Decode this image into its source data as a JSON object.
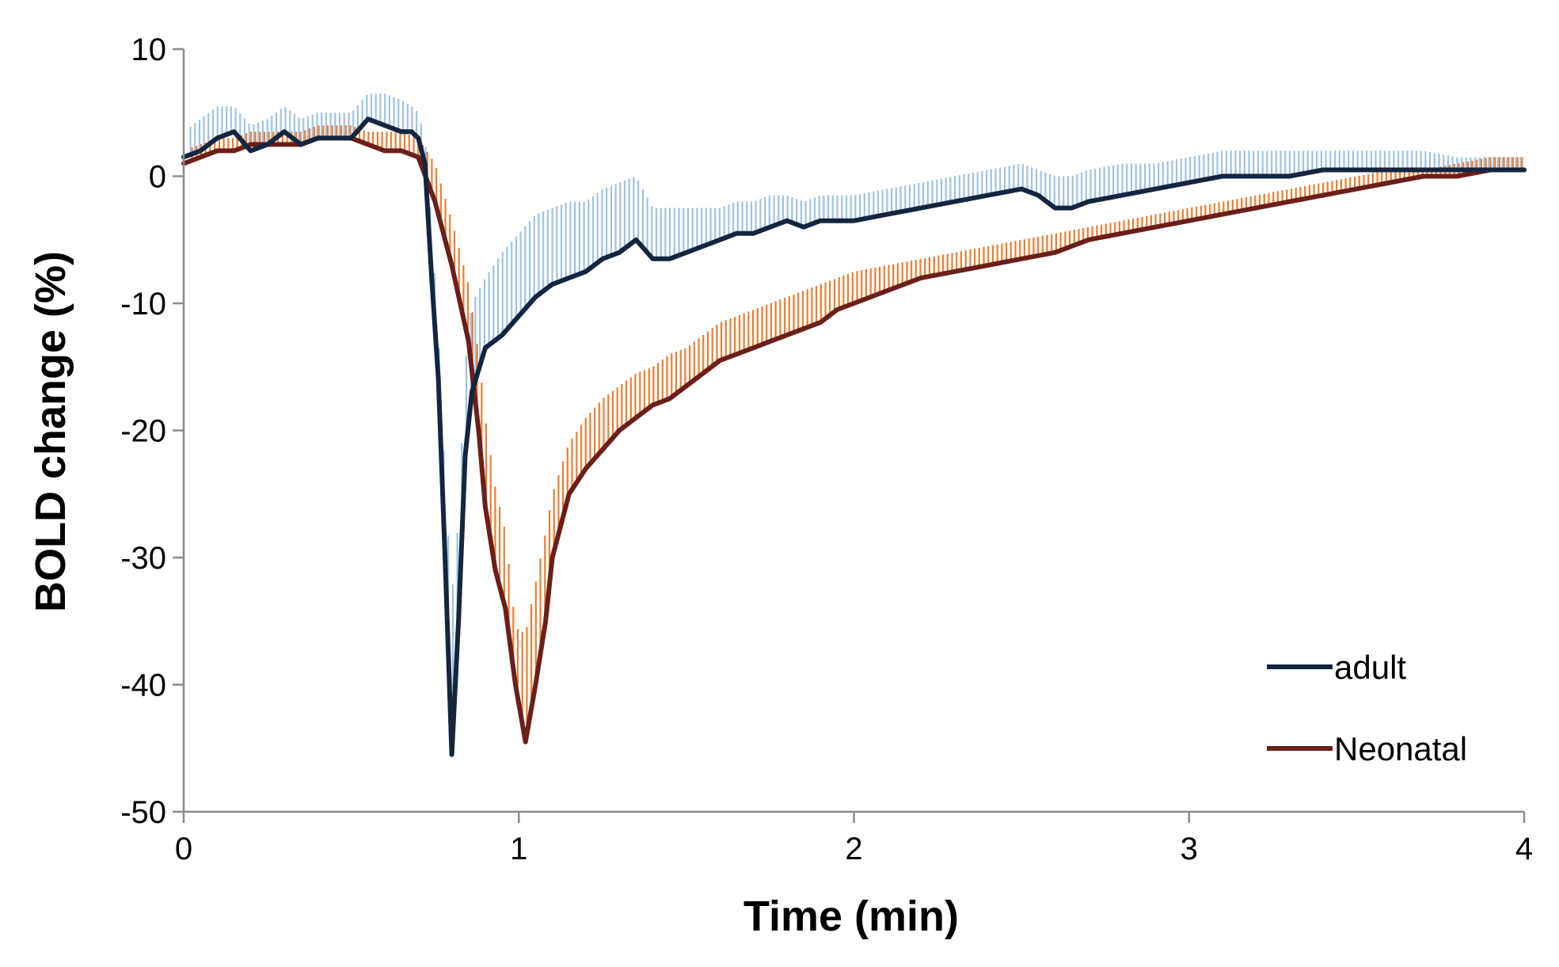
{
  "chart_data": {
    "type": "line",
    "title": "",
    "xlabel": "Time (min)",
    "ylabel": "BOLD change (%)",
    "xlim": [
      0,
      4
    ],
    "ylim": [
      -50,
      10
    ],
    "x_ticks": [
      "0",
      "1",
      "2",
      "3",
      "4"
    ],
    "y_ticks": [
      "10",
      "0",
      "-10",
      "-20",
      "-30",
      "-40",
      "-50"
    ],
    "grid": false,
    "legend_position": "bottom-right",
    "error_bars": "upper",
    "series": [
      {
        "name": "adult",
        "color": "#14253f",
        "error_color": "#9dc3e6",
        "points": [
          [
            0.0,
            1.5
          ],
          [
            0.05,
            2.0
          ],
          [
            0.1,
            3.0
          ],
          [
            0.15,
            3.5
          ],
          [
            0.2,
            2.0
          ],
          [
            0.25,
            2.5
          ],
          [
            0.3,
            3.5
          ],
          [
            0.35,
            2.5
          ],
          [
            0.4,
            3.0
          ],
          [
            0.45,
            3.0
          ],
          [
            0.5,
            3.0
          ],
          [
            0.55,
            4.5
          ],
          [
            0.6,
            4.0
          ],
          [
            0.65,
            3.5
          ],
          [
            0.68,
            3.5
          ],
          [
            0.7,
            3.0
          ],
          [
            0.72,
            1.0
          ],
          [
            0.74,
            -8.0
          ],
          [
            0.76,
            -16.0
          ],
          [
            0.78,
            -30.0
          ],
          [
            0.8,
            -45.5
          ],
          [
            0.82,
            -35.0
          ],
          [
            0.84,
            -22.0
          ],
          [
            0.86,
            -17.0
          ],
          [
            0.9,
            -13.5
          ],
          [
            0.95,
            -12.5
          ],
          [
            1.0,
            -11.0
          ],
          [
            1.05,
            -9.5
          ],
          [
            1.1,
            -8.5
          ],
          [
            1.15,
            -8.0
          ],
          [
            1.2,
            -7.5
          ],
          [
            1.25,
            -6.5
          ],
          [
            1.3,
            -6.0
          ],
          [
            1.35,
            -5.0
          ],
          [
            1.4,
            -6.5
          ],
          [
            1.45,
            -6.5
          ],
          [
            1.5,
            -6.0
          ],
          [
            1.55,
            -5.5
          ],
          [
            1.6,
            -5.0
          ],
          [
            1.65,
            -4.5
          ],
          [
            1.7,
            -4.5
          ],
          [
            1.75,
            -4.0
          ],
          [
            1.8,
            -3.5
          ],
          [
            1.85,
            -4.0
          ],
          [
            1.9,
            -3.5
          ],
          [
            1.95,
            -3.5
          ],
          [
            2.0,
            -3.5
          ],
          [
            2.1,
            -3.0
          ],
          [
            2.2,
            -2.5
          ],
          [
            2.3,
            -2.0
          ],
          [
            2.4,
            -1.5
          ],
          [
            2.5,
            -1.0
          ],
          [
            2.55,
            -1.5
          ],
          [
            2.6,
            -2.5
          ],
          [
            2.65,
            -2.5
          ],
          [
            2.7,
            -2.0
          ],
          [
            2.8,
            -1.5
          ],
          [
            2.9,
            -1.0
          ],
          [
            3.0,
            -0.5
          ],
          [
            3.1,
            0.0
          ],
          [
            3.2,
            0.0
          ],
          [
            3.3,
            0.0
          ],
          [
            3.4,
            0.5
          ],
          [
            3.5,
            0.5
          ],
          [
            3.6,
            0.5
          ],
          [
            3.7,
            0.5
          ],
          [
            3.8,
            0.5
          ],
          [
            3.9,
            0.5
          ],
          [
            4.0,
            0.5
          ]
        ],
        "error_upper": [
          [
            0.0,
            3.5
          ],
          [
            0.05,
            4.5
          ],
          [
            0.1,
            5.5
          ],
          [
            0.15,
            5.5
          ],
          [
            0.2,
            4.0
          ],
          [
            0.25,
            4.5
          ],
          [
            0.3,
            5.5
          ],
          [
            0.35,
            4.5
          ],
          [
            0.4,
            5.0
          ],
          [
            0.45,
            5.0
          ],
          [
            0.5,
            5.0
          ],
          [
            0.55,
            6.5
          ],
          [
            0.6,
            6.5
          ],
          [
            0.65,
            6.0
          ],
          [
            0.68,
            5.5
          ],
          [
            0.7,
            5.0
          ],
          [
            0.72,
            3.0
          ],
          [
            0.74,
            -4.0
          ],
          [
            0.76,
            -12.0
          ],
          [
            0.78,
            -24.0
          ],
          [
            0.8,
            -33.0
          ],
          [
            0.82,
            -27.0
          ],
          [
            0.84,
            -15.0
          ],
          [
            0.86,
            -10.0
          ],
          [
            0.9,
            -8.0
          ],
          [
            0.95,
            -6.0
          ],
          [
            1.0,
            -4.5
          ],
          [
            1.05,
            -3.0
          ],
          [
            1.1,
            -2.5
          ],
          [
            1.15,
            -2.0
          ],
          [
            1.2,
            -2.0
          ],
          [
            1.25,
            -1.0
          ],
          [
            1.3,
            -0.5
          ],
          [
            1.35,
            0.0
          ],
          [
            1.4,
            -2.5
          ],
          [
            1.45,
            -2.5
          ],
          [
            1.5,
            -2.5
          ],
          [
            1.55,
            -2.5
          ],
          [
            1.6,
            -2.5
          ],
          [
            1.65,
            -2.0
          ],
          [
            1.7,
            -2.0
          ],
          [
            1.75,
            -1.5
          ],
          [
            1.8,
            -1.5
          ],
          [
            1.85,
            -2.0
          ],
          [
            1.9,
            -1.5
          ],
          [
            1.95,
            -1.5
          ],
          [
            2.0,
            -1.5
          ],
          [
            2.1,
            -1.0
          ],
          [
            2.2,
            -0.5
          ],
          [
            2.3,
            0.0
          ],
          [
            2.4,
            0.5
          ],
          [
            2.5,
            1.0
          ],
          [
            2.55,
            0.5
          ],
          [
            2.6,
            0.0
          ],
          [
            2.65,
            0.0
          ],
          [
            2.7,
            0.5
          ],
          [
            2.8,
            1.0
          ],
          [
            2.9,
            1.0
          ],
          [
            3.0,
            1.5
          ],
          [
            3.1,
            2.0
          ],
          [
            3.2,
            2.0
          ],
          [
            3.3,
            2.0
          ],
          [
            3.4,
            2.0
          ],
          [
            3.5,
            2.0
          ],
          [
            3.6,
            2.0
          ],
          [
            3.7,
            2.0
          ],
          [
            3.8,
            1.5
          ],
          [
            3.9,
            1.5
          ],
          [
            4.0,
            1.5
          ]
        ]
      },
      {
        "name": "Neonatal",
        "color": "#6b1f1a",
        "error_color": "#ed7d31",
        "points": [
          [
            0.0,
            1.0
          ],
          [
            0.05,
            1.5
          ],
          [
            0.1,
            2.0
          ],
          [
            0.15,
            2.0
          ],
          [
            0.2,
            2.5
          ],
          [
            0.25,
            2.5
          ],
          [
            0.3,
            2.5
          ],
          [
            0.35,
            2.5
          ],
          [
            0.4,
            3.0
          ],
          [
            0.45,
            3.0
          ],
          [
            0.5,
            3.0
          ],
          [
            0.55,
            2.5
          ],
          [
            0.6,
            2.0
          ],
          [
            0.65,
            2.0
          ],
          [
            0.7,
            1.5
          ],
          [
            0.75,
            -2.0
          ],
          [
            0.8,
            -7.0
          ],
          [
            0.85,
            -13.0
          ],
          [
            0.88,
            -20.0
          ],
          [
            0.9,
            -26.0
          ],
          [
            0.93,
            -31.0
          ],
          [
            0.96,
            -34.0
          ],
          [
            0.99,
            -40.0
          ],
          [
            1.02,
            -44.5
          ],
          [
            1.05,
            -40.0
          ],
          [
            1.08,
            -35.0
          ],
          [
            1.1,
            -30.0
          ],
          [
            1.15,
            -25.0
          ],
          [
            1.2,
            -23.0
          ],
          [
            1.25,
            -21.5
          ],
          [
            1.3,
            -20.0
          ],
          [
            1.35,
            -19.0
          ],
          [
            1.4,
            -18.0
          ],
          [
            1.45,
            -17.5
          ],
          [
            1.5,
            -16.5
          ],
          [
            1.55,
            -15.5
          ],
          [
            1.6,
            -14.5
          ],
          [
            1.65,
            -14.0
          ],
          [
            1.7,
            -13.5
          ],
          [
            1.75,
            -13.0
          ],
          [
            1.8,
            -12.5
          ],
          [
            1.85,
            -12.0
          ],
          [
            1.9,
            -11.5
          ],
          [
            1.95,
            -10.5
          ],
          [
            2.0,
            -10.0
          ],
          [
            2.1,
            -9.0
          ],
          [
            2.2,
            -8.0
          ],
          [
            2.3,
            -7.5
          ],
          [
            2.4,
            -7.0
          ],
          [
            2.5,
            -6.5
          ],
          [
            2.6,
            -6.0
          ],
          [
            2.7,
            -5.0
          ],
          [
            2.8,
            -4.5
          ],
          [
            2.9,
            -4.0
          ],
          [
            3.0,
            -3.5
          ],
          [
            3.1,
            -3.0
          ],
          [
            3.2,
            -2.5
          ],
          [
            3.3,
            -2.0
          ],
          [
            3.4,
            -1.5
          ],
          [
            3.5,
            -1.0
          ],
          [
            3.6,
            -0.5
          ],
          [
            3.7,
            0.0
          ],
          [
            3.8,
            0.0
          ],
          [
            3.9,
            0.5
          ],
          [
            4.0,
            0.5
          ]
        ],
        "error_upper": [
          [
            0.0,
            2.0
          ],
          [
            0.05,
            2.5
          ],
          [
            0.1,
            3.0
          ],
          [
            0.15,
            3.0
          ],
          [
            0.2,
            3.5
          ],
          [
            0.25,
            3.5
          ],
          [
            0.3,
            3.5
          ],
          [
            0.35,
            3.5
          ],
          [
            0.4,
            4.0
          ],
          [
            0.45,
            4.0
          ],
          [
            0.5,
            4.0
          ],
          [
            0.55,
            3.5
          ],
          [
            0.6,
            3.5
          ],
          [
            0.65,
            3.5
          ],
          [
            0.7,
            3.0
          ],
          [
            0.75,
            1.0
          ],
          [
            0.8,
            -3.5
          ],
          [
            0.85,
            -8.5
          ],
          [
            0.88,
            -14.0
          ],
          [
            0.9,
            -19.0
          ],
          [
            0.93,
            -24.5
          ],
          [
            0.96,
            -28.0
          ],
          [
            0.99,
            -35.5
          ],
          [
            1.02,
            -36.0
          ],
          [
            1.05,
            -32.0
          ],
          [
            1.08,
            -28.0
          ],
          [
            1.1,
            -25.0
          ],
          [
            1.15,
            -21.0
          ],
          [
            1.2,
            -19.0
          ],
          [
            1.25,
            -17.5
          ],
          [
            1.3,
            -16.5
          ],
          [
            1.35,
            -15.5
          ],
          [
            1.4,
            -15.0
          ],
          [
            1.45,
            -14.0
          ],
          [
            1.5,
            -13.5
          ],
          [
            1.55,
            -12.5
          ],
          [
            1.6,
            -11.5
          ],
          [
            1.65,
            -11.0
          ],
          [
            1.7,
            -10.5
          ],
          [
            1.75,
            -10.0
          ],
          [
            1.8,
            -9.5
          ],
          [
            1.85,
            -9.0
          ],
          [
            1.9,
            -8.5
          ],
          [
            1.95,
            -8.0
          ],
          [
            2.0,
            -7.5
          ],
          [
            2.1,
            -7.0
          ],
          [
            2.2,
            -6.5
          ],
          [
            2.3,
            -6.0
          ],
          [
            2.4,
            -5.5
          ],
          [
            2.5,
            -5.0
          ],
          [
            2.6,
            -4.5
          ],
          [
            2.7,
            -4.0
          ],
          [
            2.8,
            -3.5
          ],
          [
            2.9,
            -3.0
          ],
          [
            3.0,
            -2.5
          ],
          [
            3.1,
            -2.0
          ],
          [
            3.2,
            -1.5
          ],
          [
            3.3,
            -1.0
          ],
          [
            3.4,
            -0.5
          ],
          [
            3.5,
            0.0
          ],
          [
            3.6,
            0.5
          ],
          [
            3.7,
            0.5
          ],
          [
            3.8,
            1.0
          ],
          [
            3.9,
            1.5
          ],
          [
            4.0,
            1.5
          ]
        ]
      }
    ]
  }
}
